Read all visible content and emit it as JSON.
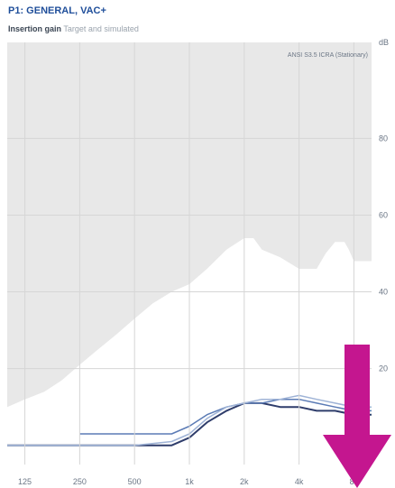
{
  "header": {
    "title": "P1: GENERAL, VAC+",
    "subtitle_strong": "Insertion gain",
    "subtitle_rest": "Target and simulated"
  },
  "chart_data": {
    "type": "area",
    "title": "Insertion gain",
    "legend": "ANSI S3.5 ICRA (Stationary)",
    "ylabel_unit": "dB",
    "xscale": "log",
    "xlim": [
      100,
      10000
    ],
    "ylim": [
      -5,
      105
    ],
    "x_ticks": [
      {
        "value": 125,
        "label": "125"
      },
      {
        "value": 250,
        "label": "250"
      },
      {
        "value": 500,
        "label": "500"
      },
      {
        "value": 1000,
        "label": "1k"
      },
      {
        "value": 2000,
        "label": "2k"
      },
      {
        "value": 4000,
        "label": "4k"
      },
      {
        "value": 8000,
        "label": "8k"
      }
    ],
    "y_ticks": [
      20,
      40,
      60,
      80
    ],
    "series": [
      {
        "kind": "area",
        "color": "#e8e8e8",
        "x": [
          100,
          125,
          160,
          200,
          250,
          315,
          400,
          500,
          630,
          800,
          1000,
          1250,
          1600,
          2000,
          2250,
          2500,
          3150,
          4000,
          5000,
          5600,
          6300,
          7100,
          7500,
          8000,
          10000
        ],
        "y": [
          10,
          12,
          14,
          17,
          21,
          25,
          29,
          33,
          37,
          40,
          42,
          46,
          51,
          54,
          54,
          51,
          49,
          46,
          46,
          50,
          53,
          53,
          51,
          48,
          48
        ]
      },
      {
        "kind": "line",
        "color": "#2f3d6b",
        "x": [
          100,
          250,
          500,
          800,
          1000,
          1250,
          1600,
          2000,
          2500,
          3150,
          4000,
          5000,
          6300,
          8000,
          10000
        ],
        "y": [
          0,
          0,
          0,
          0,
          2,
          6,
          9,
          11,
          11,
          10,
          10,
          9,
          9,
          8,
          8
        ]
      },
      {
        "kind": "line",
        "color": "#5b7bb5",
        "x": [
          250,
          500,
          630,
          800,
          1000,
          1250,
          1600,
          2000,
          2500,
          3150,
          4000,
          5000,
          6300,
          8000,
          10000
        ],
        "y": [
          3,
          3,
          3,
          3,
          5,
          8,
          10,
          11,
          11,
          12,
          12,
          11,
          10,
          9,
          9
        ]
      },
      {
        "kind": "line",
        "color": "#9fb3d6",
        "x": [
          100,
          500,
          800,
          1000,
          1250,
          1600,
          2000,
          2500,
          3150,
          4000,
          5000,
          6300,
          8000,
          10000
        ],
        "y": [
          0,
          0,
          1,
          3,
          7,
          10,
          11,
          12,
          12,
          13,
          12,
          11,
          10,
          10
        ]
      }
    ]
  },
  "overlay": {
    "arrow_icon": "down-arrow-icon",
    "arrow_color": "#c4168f"
  }
}
